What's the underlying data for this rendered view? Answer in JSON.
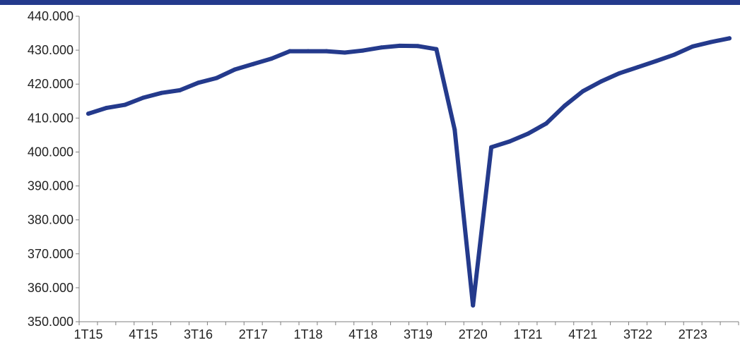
{
  "colors": {
    "line": "#243a8c",
    "axis": "#7f7f7f",
    "top_bar": "#243a8c"
  },
  "chart_data": {
    "type": "line",
    "title": "",
    "xlabel": "",
    "ylabel": "",
    "ylim": [
      350000,
      440000
    ],
    "y_ticks": [
      350000,
      360000,
      370000,
      380000,
      390000,
      400000,
      410000,
      420000,
      430000,
      440000
    ],
    "y_tick_labels": [
      "350.000",
      "360.000",
      "370.000",
      "380.000",
      "390.000",
      "400.000",
      "410.000",
      "420.000",
      "430.000",
      "440.000"
    ],
    "grid": false,
    "legend": "none",
    "categories": [
      "1T15",
      "2T15",
      "3T15",
      "4T15",
      "1T16",
      "2T16",
      "3T16",
      "4T16",
      "1T17",
      "2T17",
      "3T17",
      "4T17",
      "1T18",
      "2T18",
      "3T18",
      "4T18",
      "1T19",
      "2T19",
      "3T19",
      "4T19",
      "1T20",
      "2T20",
      "3T20",
      "4T20",
      "1T21",
      "2T21",
      "3T21",
      "4T21",
      "1T22",
      "2T22",
      "3T22",
      "4T22",
      "1T23",
      "2T23",
      "3T23",
      "4T23"
    ],
    "x_tick_labels": [
      "1T15",
      "4T15",
      "3T16",
      "2T17",
      "1T18",
      "4T18",
      "3T19",
      "2T20",
      "1T21",
      "4T21",
      "3T22",
      "2T23"
    ],
    "x_tick_label_every": 3,
    "series": [
      {
        "values": [
          411300,
          413000,
          413900,
          416000,
          417400,
          418200,
          420400,
          421800,
          424300,
          425900,
          427500,
          429700,
          429700,
          429700,
          429300,
          429900,
          430800,
          431300,
          431200,
          430300,
          406600,
          354800,
          401400,
          403100,
          405400,
          408400,
          413600,
          417900,
          420800,
          423200,
          425000,
          426800,
          428700,
          431100,
          432400,
          433500
        ]
      }
    ]
  }
}
